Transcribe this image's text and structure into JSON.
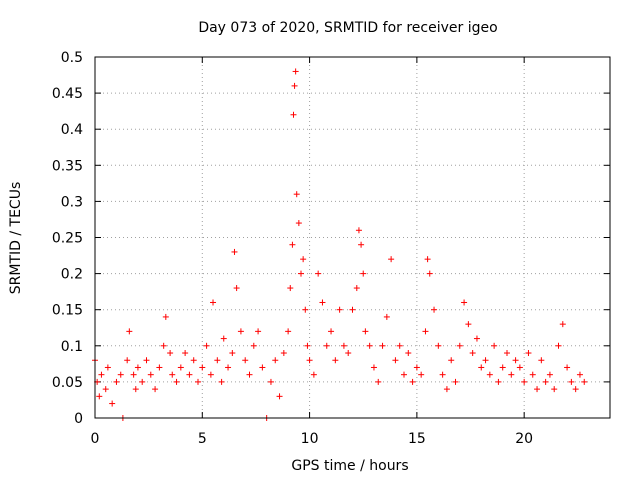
{
  "chart_data": {
    "type": "scatter",
    "title": "Day 073 of 2020, SRMTID for receiver igeo",
    "xlabel": "GPS time / hours",
    "ylabel": "SRMTID / TECUs",
    "xlim": [
      0,
      24
    ],
    "ylim": [
      0,
      0.5
    ],
    "x_ticks": [
      0,
      5,
      10,
      15,
      20
    ],
    "x_tick_labels": [
      "0",
      "5",
      "10",
      "15",
      "20"
    ],
    "y_ticks": [
      0,
      0.05,
      0.1,
      0.15,
      0.2,
      0.25,
      0.3,
      0.35,
      0.4,
      0.45,
      0.5
    ],
    "y_tick_labels": [
      "0",
      "0.05",
      "0.1",
      "0.15",
      "0.2",
      "0.25",
      "0.3",
      "0.35",
      "0.4",
      "0.45",
      "0.5"
    ],
    "grid": true,
    "marker": "+",
    "marker_color": "#ff0000",
    "series": [
      {
        "name": "SRMTID",
        "x": [
          0.0,
          0.1,
          0.2,
          0.3,
          0.5,
          0.6,
          0.8,
          1.0,
          1.2,
          1.3,
          1.5,
          1.6,
          1.8,
          1.9,
          2.0,
          2.2,
          2.4,
          2.6,
          2.8,
          3.0,
          3.2,
          3.3,
          3.5,
          3.6,
          3.8,
          4.0,
          4.2,
          4.4,
          4.6,
          4.8,
          5.0,
          5.2,
          5.4,
          5.5,
          5.7,
          5.9,
          6.0,
          6.2,
          6.4,
          6.5,
          6.6,
          6.8,
          7.0,
          7.2,
          7.4,
          7.6,
          7.8,
          8.0,
          8.2,
          8.4,
          8.6,
          8.8,
          9.0,
          9.1,
          9.2,
          9.25,
          9.3,
          9.35,
          9.4,
          9.5,
          9.6,
          9.7,
          9.8,
          9.9,
          10.0,
          10.2,
          10.4,
          10.6,
          10.8,
          11.0,
          11.2,
          11.4,
          11.6,
          11.8,
          12.0,
          12.2,
          12.3,
          12.4,
          12.5,
          12.6,
          12.8,
          13.0,
          13.2,
          13.4,
          13.6,
          13.8,
          14.0,
          14.2,
          14.4,
          14.6,
          14.8,
          15.0,
          15.2,
          15.4,
          15.5,
          15.6,
          15.8,
          16.0,
          16.2,
          16.4,
          16.6,
          16.8,
          17.0,
          17.2,
          17.4,
          17.6,
          17.8,
          18.0,
          18.2,
          18.4,
          18.6,
          18.8,
          19.0,
          19.2,
          19.4,
          19.6,
          19.8,
          20.0,
          20.2,
          20.4,
          20.6,
          20.8,
          21.0,
          21.2,
          21.4,
          21.6,
          21.8,
          22.0,
          22.2,
          22.4,
          22.6,
          22.8
        ],
        "y": [
          0.08,
          0.05,
          0.03,
          0.06,
          0.04,
          0.07,
          0.02,
          0.05,
          0.06,
          0.0,
          0.08,
          0.12,
          0.06,
          0.04,
          0.07,
          0.05,
          0.08,
          0.06,
          0.04,
          0.07,
          0.1,
          0.14,
          0.09,
          0.06,
          0.05,
          0.07,
          0.09,
          0.06,
          0.08,
          0.05,
          0.07,
          0.1,
          0.06,
          0.16,
          0.08,
          0.05,
          0.11,
          0.07,
          0.09,
          0.23,
          0.18,
          0.12,
          0.08,
          0.06,
          0.1,
          0.12,
          0.07,
          0.0,
          0.05,
          0.08,
          0.03,
          0.09,
          0.12,
          0.18,
          0.24,
          0.42,
          0.46,
          0.48,
          0.31,
          0.27,
          0.2,
          0.22,
          0.15,
          0.1,
          0.08,
          0.06,
          0.2,
          0.16,
          0.1,
          0.12,
          0.08,
          0.15,
          0.1,
          0.09,
          0.15,
          0.18,
          0.26,
          0.24,
          0.2,
          0.12,
          0.1,
          0.07,
          0.05,
          0.1,
          0.14,
          0.22,
          0.08,
          0.1,
          0.06,
          0.09,
          0.05,
          0.07,
          0.06,
          0.12,
          0.22,
          0.2,
          0.15,
          0.1,
          0.06,
          0.04,
          0.08,
          0.05,
          0.1,
          0.16,
          0.13,
          0.09,
          0.11,
          0.07,
          0.08,
          0.06,
          0.1,
          0.05,
          0.07,
          0.09,
          0.06,
          0.08,
          0.07,
          0.05,
          0.09,
          0.06,
          0.04,
          0.08,
          0.05,
          0.06,
          0.04,
          0.1,
          0.13,
          0.07,
          0.05,
          0.04,
          0.06,
          0.05
        ]
      }
    ]
  }
}
